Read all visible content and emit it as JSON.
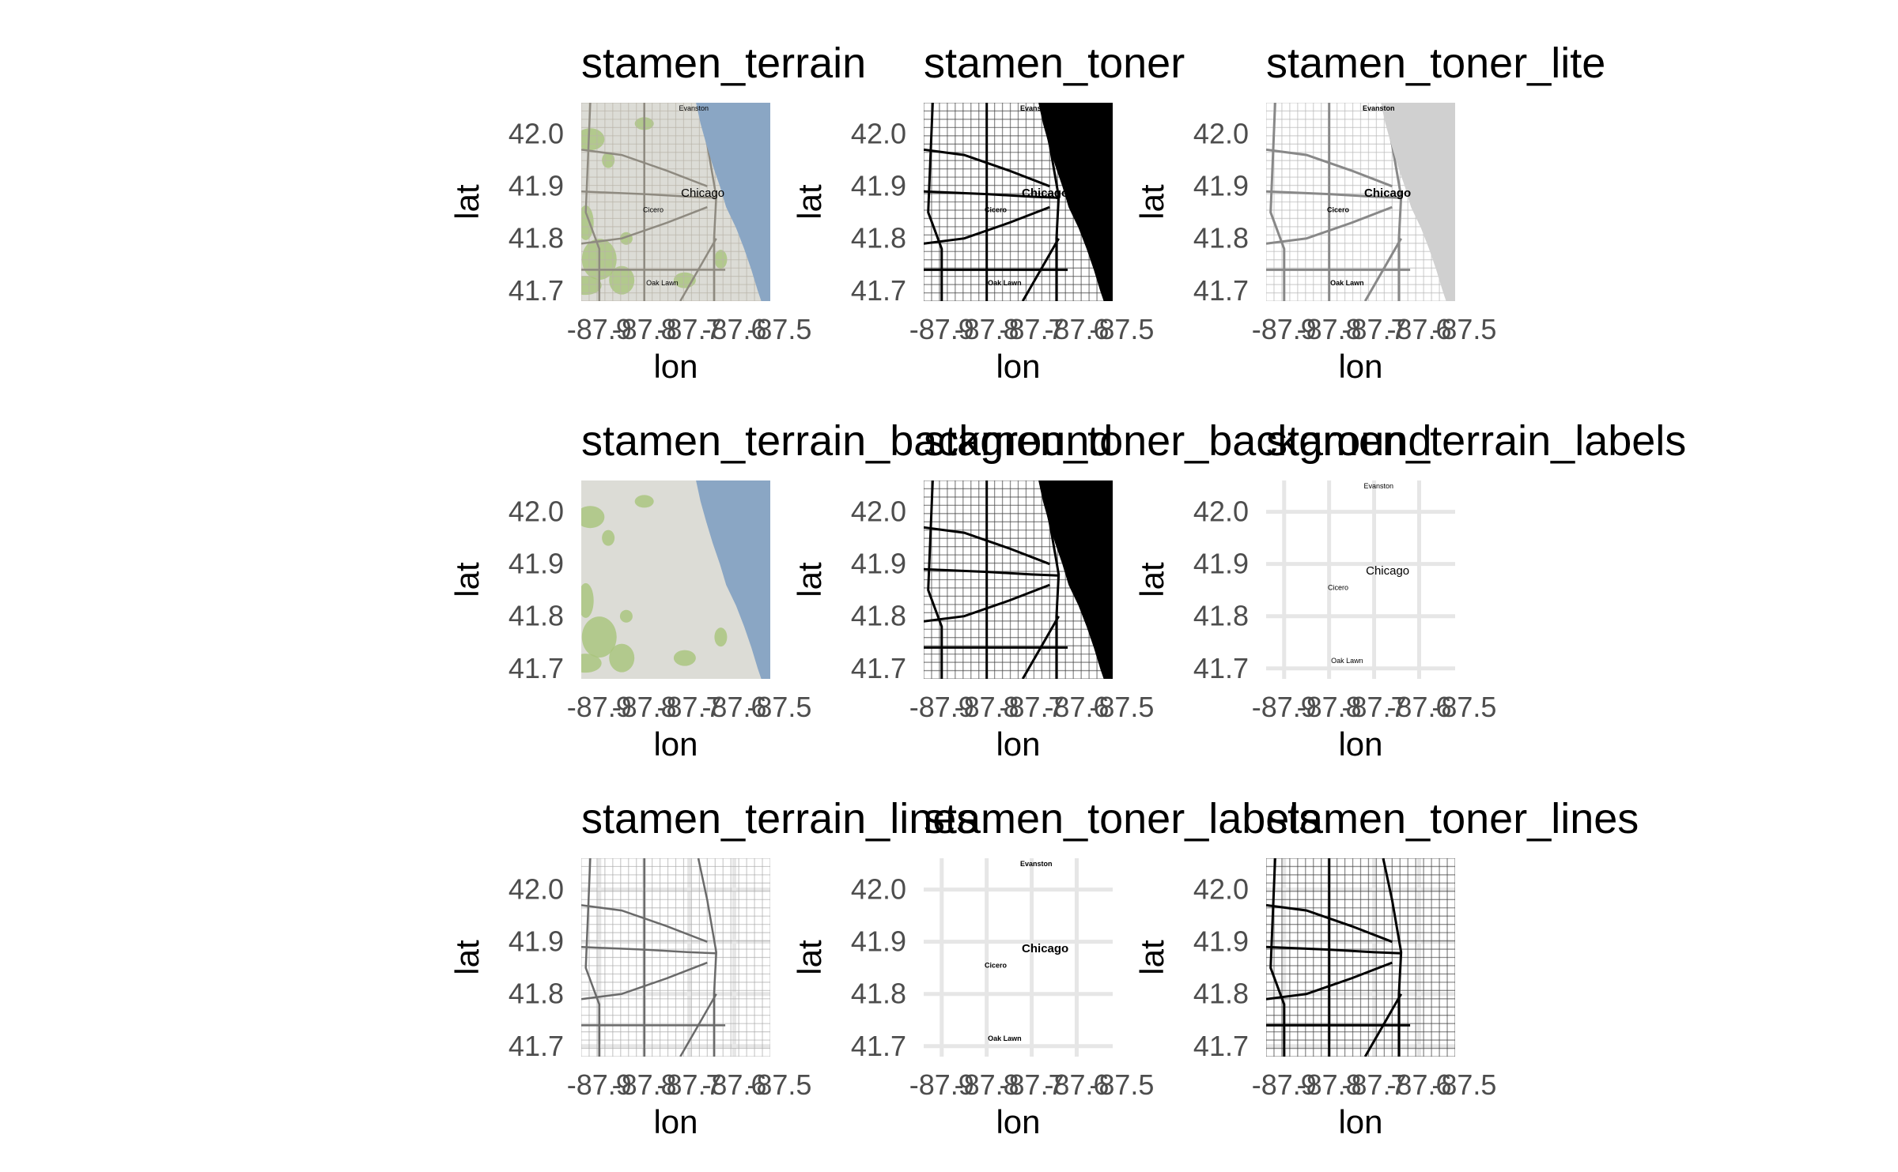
{
  "figure": {
    "x_axis": {
      "title": "lon",
      "ticks": [
        {
          "value": -87.9,
          "label": "-87.9"
        },
        {
          "value": -87.8,
          "label": "-87.8"
        },
        {
          "value": -87.7,
          "label": "-87.7"
        },
        {
          "value": -87.6,
          "label": "-87.6"
        },
        {
          "value": -87.5,
          "label": "-87.5"
        }
      ],
      "range": [
        -87.94,
        -87.52
      ]
    },
    "y_axis": {
      "title": "lat",
      "ticks": [
        {
          "value": 41.7,
          "label": "41.7"
        },
        {
          "value": 41.8,
          "label": "41.8"
        },
        {
          "value": 41.9,
          "label": "41.9"
        },
        {
          "value": 42.0,
          "label": "42.0"
        }
      ],
      "range": [
        41.68,
        42.06
      ]
    },
    "places": [
      {
        "name": "Evanston",
        "lon": -87.69,
        "lat": 42.045,
        "major": false
      },
      {
        "name": "Chicago",
        "lon": -87.67,
        "lat": 41.88,
        "major": true
      },
      {
        "name": "Cicero",
        "lon": -87.78,
        "lat": 41.85,
        "major": false
      },
      {
        "name": "Oak Lawn",
        "lon": -87.76,
        "lat": 41.71,
        "major": false
      }
    ],
    "panels": [
      {
        "title": "stamen_terrain",
        "style": "terrain"
      },
      {
        "title": "stamen_toner",
        "style": "toner"
      },
      {
        "title": "stamen_toner_lite",
        "style": "toner_lite"
      },
      {
        "title": "stamen_terrain_background",
        "style": "terrain_background"
      },
      {
        "title": "stamen_toner_background",
        "style": "toner_background"
      },
      {
        "title": "stamen_terrain_labels",
        "style": "terrain_labels"
      },
      {
        "title": "stamen_terrain_lines",
        "style": "terrain_lines"
      },
      {
        "title": "stamen_toner_labels",
        "style": "toner_labels"
      },
      {
        "title": "stamen_toner_lines",
        "style": "toner_lines"
      }
    ],
    "colors": {
      "water_terrain": "#8aa6c4",
      "land_terrain": "#dcdcd6",
      "park_green": "#a8c47a",
      "water_toner": "#000000",
      "water_lite": "#d0d0d0",
      "grid": "#e6e6e6"
    }
  }
}
